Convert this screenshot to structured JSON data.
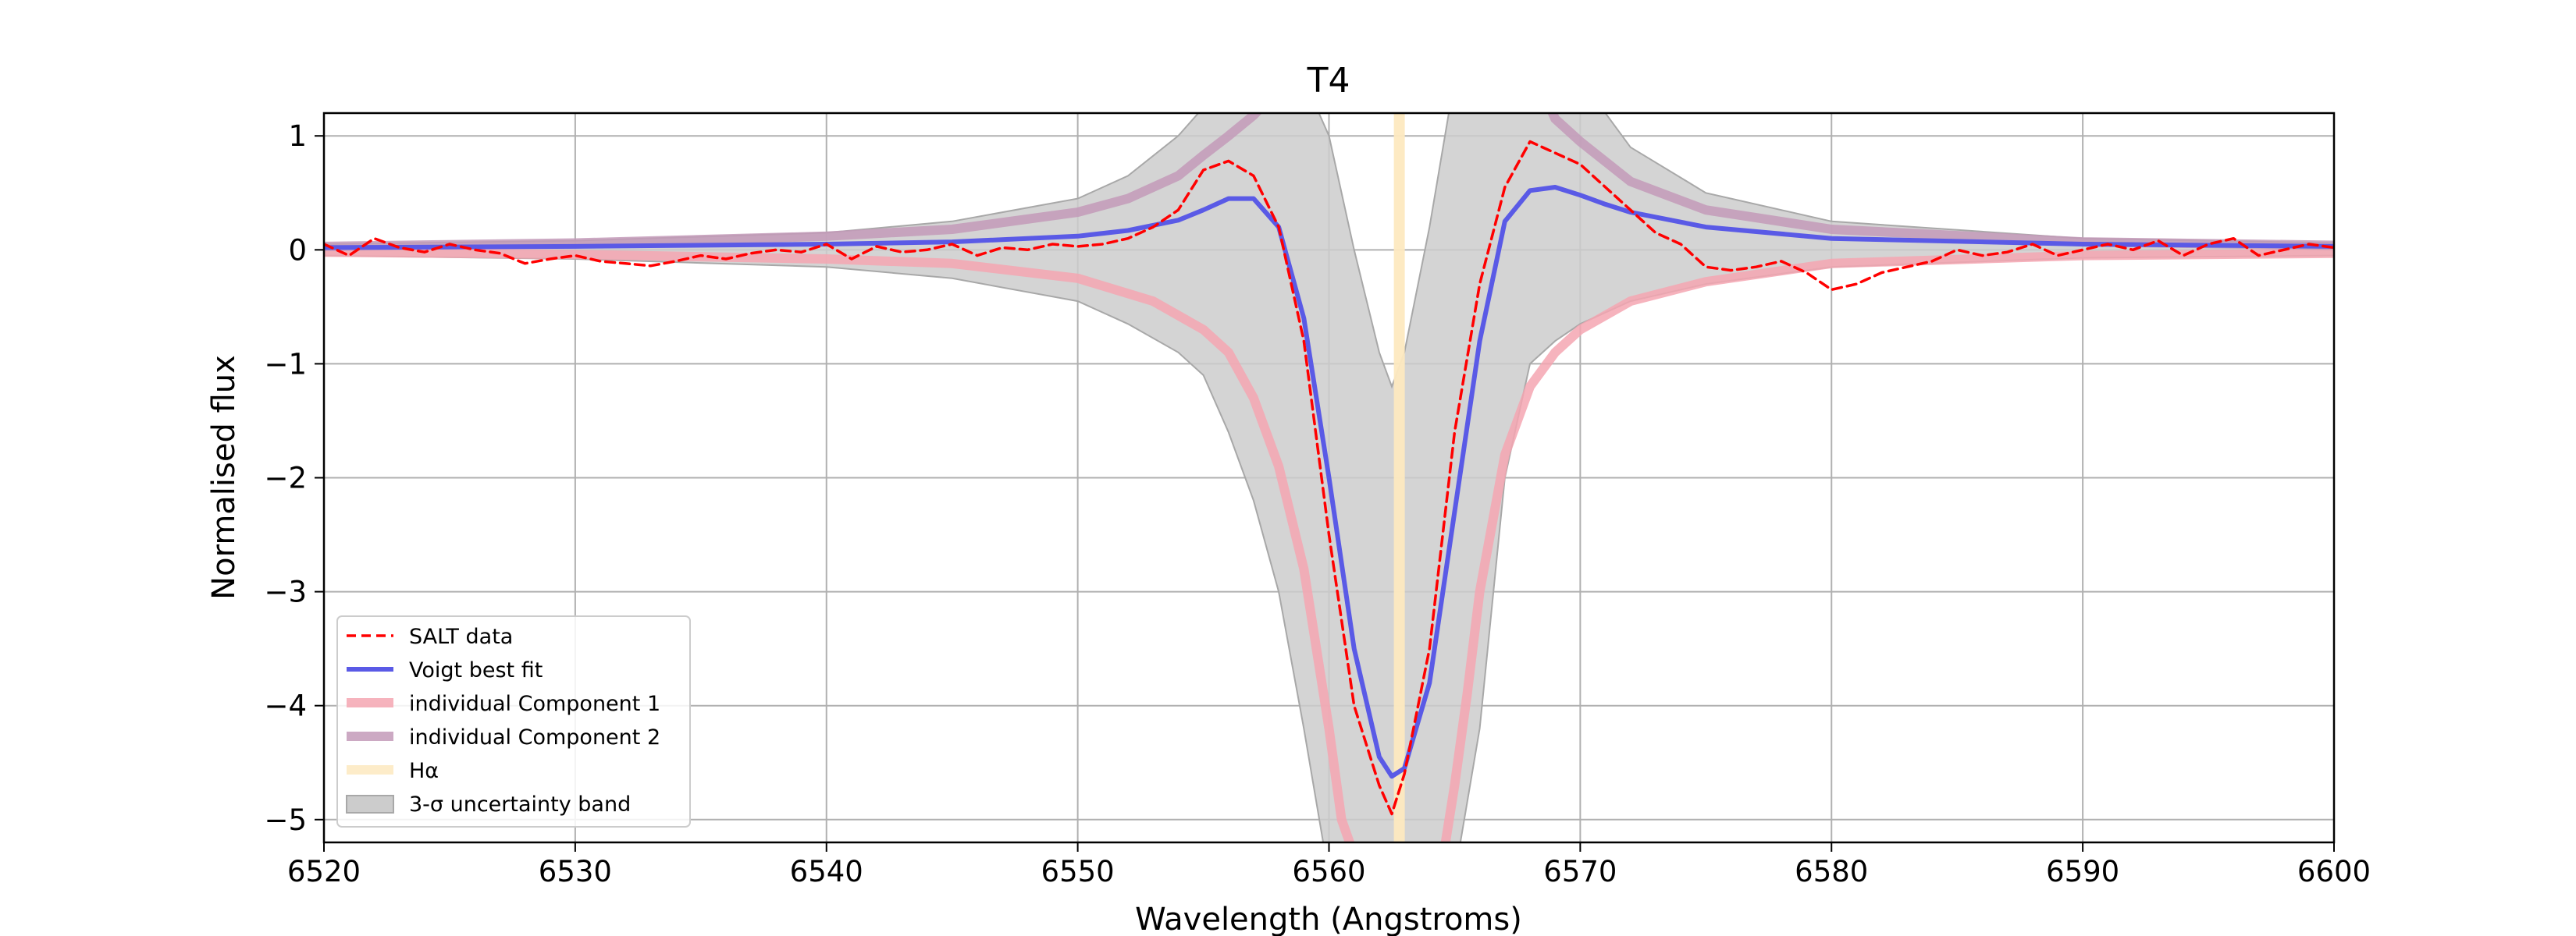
{
  "chart_data": {
    "type": "line",
    "title": "T4",
    "xlabel": "Wavelength (Angstroms)",
    "ylabel": "Normalised flux",
    "xlim": [
      6520,
      6600
    ],
    "ylim": [
      -5.2,
      1.2
    ],
    "xticks": [
      6520,
      6530,
      6540,
      6550,
      6560,
      6570,
      6580,
      6590,
      6600
    ],
    "yticks": [
      1,
      0,
      -1,
      -2,
      -3,
      -4,
      -5
    ],
    "ytick_labels": [
      "1",
      "0",
      "−1",
      "−2",
      "−3",
      "−4",
      "−5"
    ],
    "grid": true,
    "legend_position": "lower-left",
    "halpha_wavelength": 6562.8,
    "colors": {
      "salt": "#ff0000",
      "voigt": "#5a5ae6",
      "component1": "#f4a6b2",
      "component2": "#c39ab8",
      "halpha": "#fde9c0",
      "band": "#cccccc"
    },
    "legend": [
      {
        "key": "salt",
        "label": "SALT data",
        "style": "dashed"
      },
      {
        "key": "voigt",
        "label": "Voigt best fit",
        "style": "line"
      },
      {
        "key": "component1",
        "label": "individual Component 1",
        "style": "thick"
      },
      {
        "key": "component2",
        "label": "individual Component 2",
        "style": "thick"
      },
      {
        "key": "halpha",
        "label": "Hα",
        "style": "thick"
      },
      {
        "key": "band",
        "label": "3-σ uncertainty band",
        "style": "patch"
      }
    ],
    "series": [
      {
        "key": "salt",
        "name": "SALT data",
        "x": [
          6520,
          6521,
          6522,
          6523,
          6524,
          6525,
          6526,
          6527,
          6528,
          6529,
          6530,
          6531,
          6532,
          6533,
          6534,
          6535,
          6536,
          6537,
          6538,
          6539,
          6540,
          6541,
          6542,
          6543,
          6544,
          6545,
          6546,
          6547,
          6548,
          6549,
          6550,
          6551,
          6552,
          6553,
          6554,
          6555,
          6556,
          6557,
          6558,
          6559,
          6560,
          6561,
          6562,
          6562.5,
          6563,
          6564,
          6565,
          6566,
          6567,
          6568,
          6569,
          6570,
          6571,
          6572,
          6573,
          6574,
          6575,
          6576,
          6577,
          6578,
          6579,
          6580,
          6581,
          6582,
          6583,
          6584,
          6585,
          6586,
          6587,
          6588,
          6589,
          6590,
          6591,
          6592,
          6593,
          6594,
          6595,
          6596,
          6597,
          6598,
          6599,
          6600
        ],
        "y": [
          0.05,
          -0.05,
          0.1,
          0.02,
          -0.02,
          0.05,
          0.0,
          -0.03,
          -0.12,
          -0.08,
          -0.05,
          -0.1,
          -0.12,
          -0.14,
          -0.1,
          -0.05,
          -0.08,
          -0.03,
          0.0,
          -0.02,
          0.05,
          -0.08,
          0.03,
          -0.02,
          0.0,
          0.05,
          -0.05,
          0.02,
          0.0,
          0.05,
          0.03,
          0.05,
          0.1,
          0.2,
          0.35,
          0.7,
          0.78,
          0.65,
          0.2,
          -0.8,
          -2.5,
          -4.0,
          -4.7,
          -4.95,
          -4.6,
          -3.5,
          -1.6,
          -0.3,
          0.55,
          0.95,
          0.85,
          0.75,
          0.55,
          0.35,
          0.15,
          0.05,
          -0.15,
          -0.18,
          -0.15,
          -0.1,
          -0.2,
          -0.35,
          -0.3,
          -0.2,
          -0.15,
          -0.1,
          0.0,
          -0.05,
          -0.02,
          0.05,
          -0.05,
          0.0,
          0.05,
          0.0,
          0.08,
          -0.05,
          0.05,
          0.1,
          -0.05,
          0.0,
          0.05,
          0.02
        ]
      },
      {
        "key": "voigt",
        "name": "Voigt best fit",
        "x": [
          6520,
          6530,
          6540,
          6545,
          6550,
          6552,
          6554,
          6555,
          6556,
          6557,
          6558,
          6559,
          6560,
          6561,
          6562,
          6562.5,
          6563,
          6564,
          6565,
          6566,
          6567,
          6568,
          6569,
          6570,
          6571,
          6572,
          6575,
          6580,
          6590,
          6600
        ],
        "y": [
          0.02,
          0.03,
          0.05,
          0.07,
          0.12,
          0.17,
          0.26,
          0.35,
          0.45,
          0.45,
          0.2,
          -0.6,
          -2.0,
          -3.5,
          -4.45,
          -4.62,
          -4.55,
          -3.8,
          -2.3,
          -0.8,
          0.25,
          0.52,
          0.55,
          0.48,
          0.4,
          0.33,
          0.2,
          0.1,
          0.05,
          0.03
        ]
      },
      {
        "key": "component1",
        "name": "individual Component 1",
        "x": [
          6520,
          6530,
          6540,
          6545,
          6550,
          6553,
          6555,
          6556,
          6557,
          6558,
          6559,
          6560,
          6560.5,
          6560.9,
          6564.6,
          6565,
          6565.5,
          6566,
          6567,
          6568,
          6569,
          6570,
          6572,
          6575,
          6580,
          6590,
          6600
        ],
        "y": [
          -0.02,
          -0.04,
          -0.08,
          -0.12,
          -0.25,
          -0.45,
          -0.7,
          -0.9,
          -1.3,
          -1.9,
          -2.8,
          -4.2,
          -5.0,
          -5.25,
          -5.25,
          -4.7,
          -3.9,
          -3.0,
          -1.8,
          -1.2,
          -0.9,
          -0.7,
          -0.45,
          -0.28,
          -0.12,
          -0.05,
          -0.03
        ]
      },
      {
        "key": "component2",
        "name": "individual Component 2",
        "x": [
          6520,
          6530,
          6540,
          6545,
          6550,
          6552,
          6554,
          6555,
          6556,
          6557,
          6557.3,
          6568.8,
          6569,
          6570,
          6572,
          6575,
          6580,
          6590,
          6600
        ],
        "y": [
          0.03,
          0.06,
          0.12,
          0.18,
          0.33,
          0.45,
          0.65,
          0.83,
          1.0,
          1.18,
          1.25,
          1.25,
          1.15,
          0.95,
          0.6,
          0.35,
          0.18,
          0.07,
          0.04
        ]
      }
    ],
    "uncertainty_band": {
      "x": [
        6520,
        6530,
        6540,
        6545,
        6550,
        6552,
        6554,
        6555,
        6556,
        6557,
        6558,
        6559,
        6560,
        6561,
        6562,
        6562.5,
        6563,
        6564,
        6565,
        6566,
        6567,
        6568,
        6569,
        6570,
        6572,
        6575,
        6580,
        6590,
        6600
      ],
      "upper": [
        0.05,
        0.08,
        0.15,
        0.25,
        0.45,
        0.65,
        1.0,
        1.25,
        1.5,
        1.5,
        1.5,
        1.5,
        1.0,
        0.0,
        -0.9,
        -1.2,
        -0.9,
        0.2,
        1.5,
        1.5,
        1.5,
        1.5,
        1.5,
        1.5,
        0.9,
        0.5,
        0.25,
        0.1,
        0.06
      ],
      "lower": [
        -0.05,
        -0.08,
        -0.15,
        -0.25,
        -0.45,
        -0.65,
        -0.9,
        -1.1,
        -1.6,
        -2.2,
        -3.0,
        -4.2,
        -5.5,
        -5.5,
        -5.5,
        -5.5,
        -5.5,
        -5.5,
        -5.5,
        -4.2,
        -2.0,
        -1.0,
        -0.8,
        -0.65,
        -0.45,
        -0.3,
        -0.15,
        -0.07,
        -0.05
      ]
    }
  }
}
